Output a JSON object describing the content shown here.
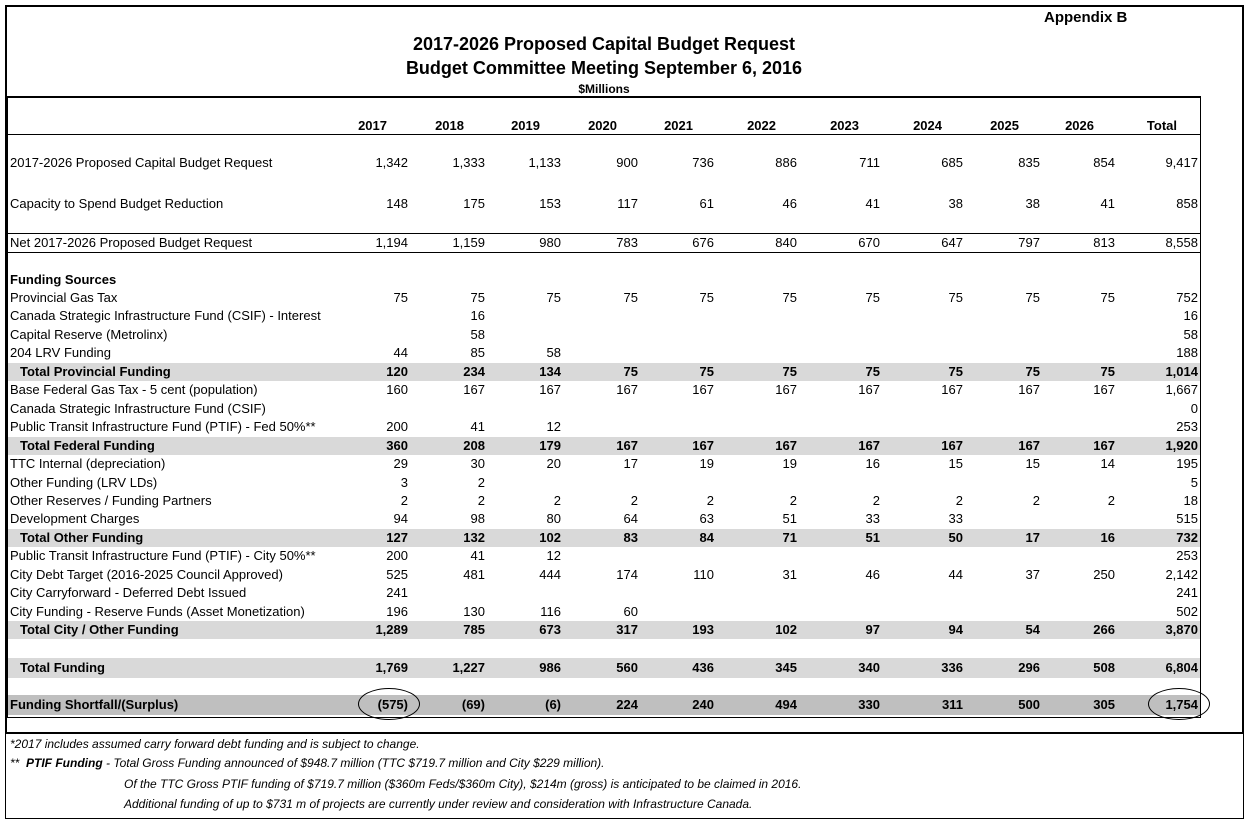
{
  "appendix": "Appendix B",
  "title": [
    "2017-2026 Proposed Capital Budget Request",
    "Budget Committee Meeting September 6, 2016"
  ],
  "units": "$Millions",
  "columns": [
    "2017",
    "2018",
    "2019",
    "2020",
    "2021",
    "2022",
    "2023",
    "2024",
    "2025",
    "2026",
    "Total"
  ],
  "main_rows": [
    {
      "label": "2017-2026 Proposed Capital Budget Request",
      "cells": [
        "1,342",
        "1,333",
        "1,133",
        "900",
        "736",
        "886",
        "711",
        "685",
        "835",
        "854",
        "9,417"
      ]
    },
    {
      "label": "Capacity to Spend Budget Reduction",
      "cells": [
        "148",
        "175",
        "153",
        "117",
        "61",
        "46",
        "41",
        "38",
        "38",
        "41",
        "858"
      ]
    },
    {
      "label": "Net 2017-2026 Proposed Budget Request",
      "cells": [
        "1,194",
        "1,159",
        "980",
        "783",
        "676",
        "840",
        "670",
        "647",
        "797",
        "813",
        "8,558"
      ]
    }
  ],
  "funding": {
    "heading": "Funding Sources",
    "groups": [
      {
        "rows": [
          {
            "label": "Provincial Gas Tax",
            "cells": [
              "75",
              "75",
              "75",
              "75",
              "75",
              "75",
              "75",
              "75",
              "75",
              "75",
              "752"
            ]
          },
          {
            "label": "Canada Strategic Infrastructure Fund (CSIF) - Interest",
            "cells": [
              null,
              "16",
              null,
              null,
              null,
              null,
              null,
              null,
              null,
              null,
              "16"
            ]
          },
          {
            "label": "Capital Reserve (Metrolinx)",
            "cells": [
              null,
              "58",
              null,
              null,
              null,
              null,
              null,
              null,
              null,
              null,
              "58"
            ]
          },
          {
            "label": "204 LRV Funding",
            "cells": [
              "44",
              "85",
              "58",
              null,
              null,
              null,
              null,
              null,
              null,
              null,
              "188"
            ]
          }
        ],
        "total": {
          "label": "Total Provincial Funding",
          "cells": [
            "120",
            "234",
            "134",
            "75",
            "75",
            "75",
            "75",
            "75",
            "75",
            "75",
            "1,014"
          ]
        }
      },
      {
        "rows": [
          {
            "label": "Base Federal Gas Tax - 5 cent (population)",
            "cells": [
              "160",
              "167",
              "167",
              "167",
              "167",
              "167",
              "167",
              "167",
              "167",
              "167",
              "1,667"
            ]
          },
          {
            "label": "Canada Strategic Infrastructure Fund (CSIF)",
            "cells": [
              null,
              null,
              null,
              null,
              null,
              null,
              null,
              null,
              null,
              null,
              "0"
            ]
          },
          {
            "label": "Public Transit Infrastructure Fund (PTIF) - Fed 50%**",
            "cells": [
              "200",
              "41",
              "12",
              null,
              null,
              null,
              null,
              null,
              null,
              null,
              "253"
            ]
          }
        ],
        "total": {
          "label": "Total Federal Funding",
          "cells": [
            "360",
            "208",
            "179",
            "167",
            "167",
            "167",
            "167",
            "167",
            "167",
            "167",
            "1,920"
          ]
        }
      },
      {
        "rows": [
          {
            "label": "TTC Internal (depreciation)",
            "cells": [
              "29",
              "30",
              "20",
              "17",
              "19",
              "19",
              "16",
              "15",
              "15",
              "14",
              "195"
            ]
          },
          {
            "label": "Other Funding (LRV LDs)",
            "cells": [
              "3",
              "2",
              null,
              null,
              null,
              null,
              null,
              null,
              null,
              null,
              "5"
            ]
          },
          {
            "label": "Other Reserves / Funding Partners",
            "cells": [
              "2",
              "2",
              "2",
              "2",
              "2",
              "2",
              "2",
              "2",
              "2",
              "2",
              "18"
            ]
          },
          {
            "label": "Development Charges",
            "cells": [
              "94",
              "98",
              "80",
              "64",
              "63",
              "51",
              "33",
              "33",
              null,
              null,
              "515"
            ]
          }
        ],
        "total": {
          "label": "Total Other Funding",
          "cells": [
            "127",
            "132",
            "102",
            "83",
            "84",
            "71",
            "51",
            "50",
            "17",
            "16",
            "732"
          ]
        }
      },
      {
        "rows": [
          {
            "label": "Public Transit Infrastructure Fund (PTIF) - City 50%**",
            "cells": [
              "200",
              "41",
              "12",
              null,
              null,
              null,
              null,
              null,
              null,
              null,
              "253"
            ]
          },
          {
            "label": "City Debt Target (2016-2025 Council Approved)",
            "cells": [
              "525",
              "481",
              "444",
              "174",
              "110",
              "31",
              "46",
              "44",
              "37",
              "250",
              "2,142"
            ]
          },
          {
            "label": "City Carryforward - Deferred Debt Issued",
            "cells": [
              "241",
              null,
              null,
              null,
              null,
              null,
              null,
              null,
              null,
              null,
              "241"
            ]
          },
          {
            "label": "City Funding - Reserve Funds (Asset Monetization)",
            "cells": [
              "196",
              "130",
              "116",
              "60",
              null,
              null,
              null,
              null,
              null,
              null,
              "502"
            ]
          }
        ],
        "total": {
          "label": "Total City / Other Funding",
          "cells": [
            "1,289",
            "785",
            "673",
            "317",
            "193",
            "102",
            "97",
            "94",
            "54",
            "266",
            "3,870"
          ]
        }
      }
    ]
  },
  "total_funding": {
    "label": "Total Funding",
    "cells": [
      "1,769",
      "1,227",
      "986",
      "560",
      "436",
      "345",
      "340",
      "336",
      "296",
      "508",
      "6,804"
    ]
  },
  "shortfall": {
    "label": "Funding Shortfall/(Surplus)",
    "cells": [
      "(575)",
      "(69)",
      "(6)",
      "224",
      "240",
      "494",
      "330",
      "311",
      "500",
      "305",
      "1,754"
    ]
  },
  "notes": {
    "note1": "*2017 includes assumed carry forward debt funding and is subject to change.",
    "note2": {
      "marker": "**",
      "term": "PTIF Funding",
      "text": "- Total Gross Funding announced of $948.7 million (TTC $719.7 million and City $229 million)."
    },
    "note3": "Of the TTC Gross PTIF funding of $719.7 million ($360m Feds/$360m City), $214m (gross) is anticipated to be claimed in 2016.",
    "note4": "Additional funding of up to $731 m of projects are currently under review and consideration with Infrastructure Canada."
  }
}
